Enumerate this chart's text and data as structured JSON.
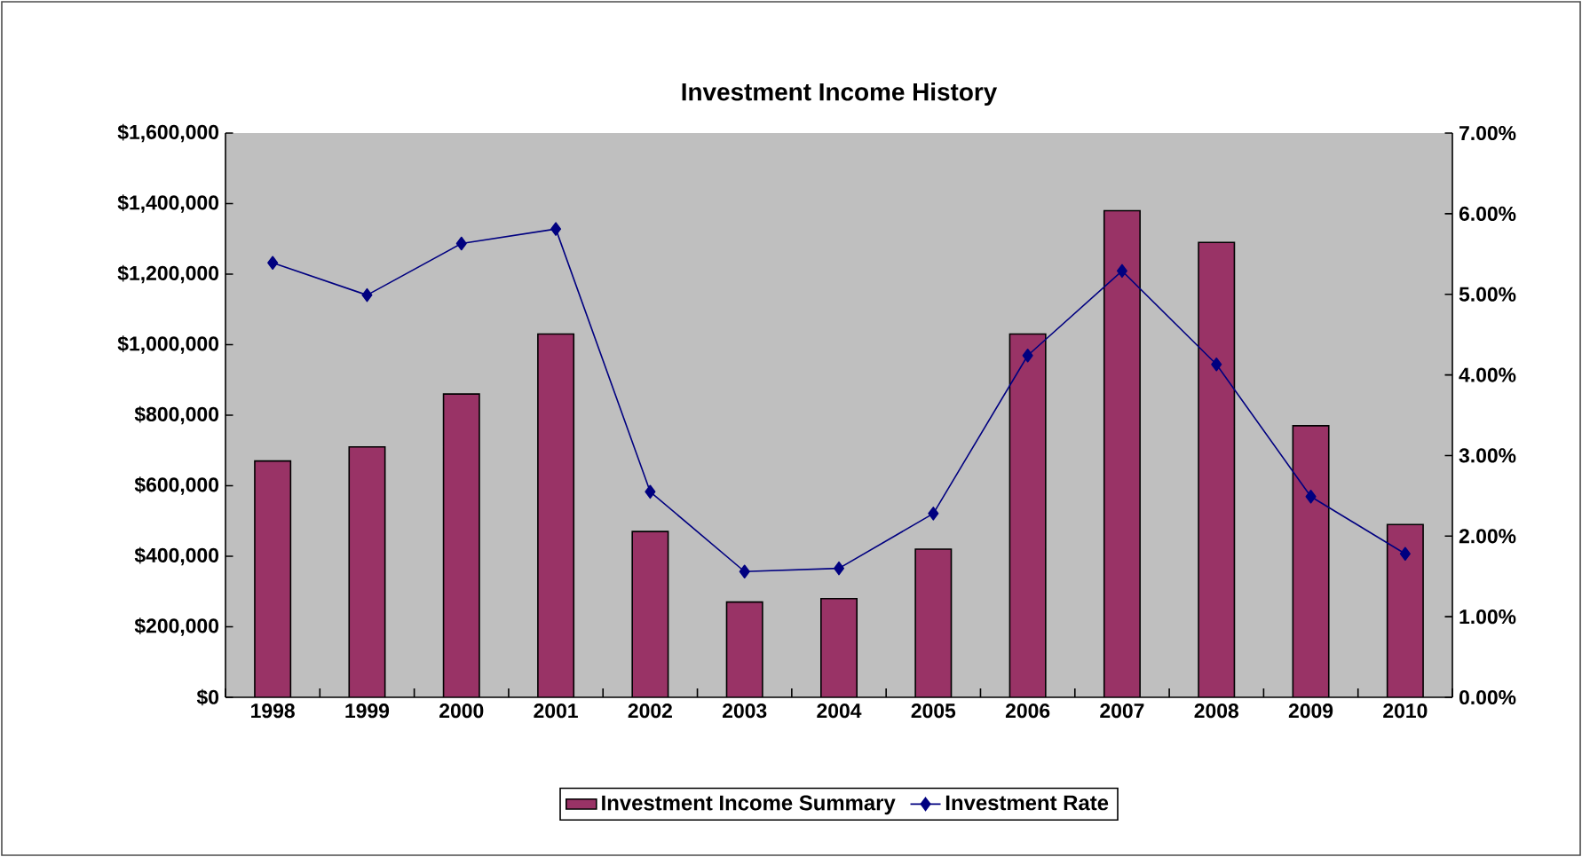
{
  "chart_data": {
    "type": "bar",
    "title": "Investment Income History",
    "categories": [
      "1998",
      "1999",
      "2000",
      "2001",
      "2002",
      "2003",
      "2004",
      "2005",
      "2006",
      "2007",
      "2008",
      "2009",
      "2010"
    ],
    "series": [
      {
        "name": "Investment Income Summary",
        "color": "#993366",
        "values": [
          670000,
          710000,
          860000,
          1030000,
          470000,
          270000,
          280000,
          420000,
          1030000,
          1380000,
          1290000,
          770000,
          490000
        ]
      },
      {
        "name": "Investment Rate",
        "type": "line",
        "axis": "y2",
        "color": "#000080",
        "marker": "diamond",
        "line_style": "solid",
        "values": [
          5.39,
          4.99,
          5.63,
          5.81,
          2.55,
          1.56,
          1.6,
          2.28,
          4.24,
          5.29,
          4.13,
          2.49,
          1.78
        ]
      }
    ],
    "ylim": [
      0,
      1600000
    ],
    "yticks": [
      {
        "value": 0,
        "label": "$0"
      },
      {
        "value": 200000,
        "label": "$200,000"
      },
      {
        "value": 400000,
        "label": "$400,000"
      },
      {
        "value": 600000,
        "label": "$600,000"
      },
      {
        "value": 800000,
        "label": "$800,000"
      },
      {
        "value": 1000000,
        "label": "$1,000,000"
      },
      {
        "value": 1200000,
        "label": "$1,200,000"
      },
      {
        "value": 1400000,
        "label": "$1,400,000"
      },
      {
        "value": 1600000,
        "label": "$1,600,000"
      }
    ],
    "y2lim": [
      0,
      7
    ],
    "y2ticks": [
      {
        "value": 0,
        "label": "0.00%"
      },
      {
        "value": 1,
        "label": "1.00%"
      },
      {
        "value": 2,
        "label": "2.00%"
      },
      {
        "value": 3,
        "label": "3.00%"
      },
      {
        "value": 4,
        "label": "4.00%"
      },
      {
        "value": 5,
        "label": "5.00%"
      },
      {
        "value": 6,
        "label": "6.00%"
      },
      {
        "value": 7,
        "label": "7.00%"
      }
    ],
    "legend": "bottom"
  }
}
